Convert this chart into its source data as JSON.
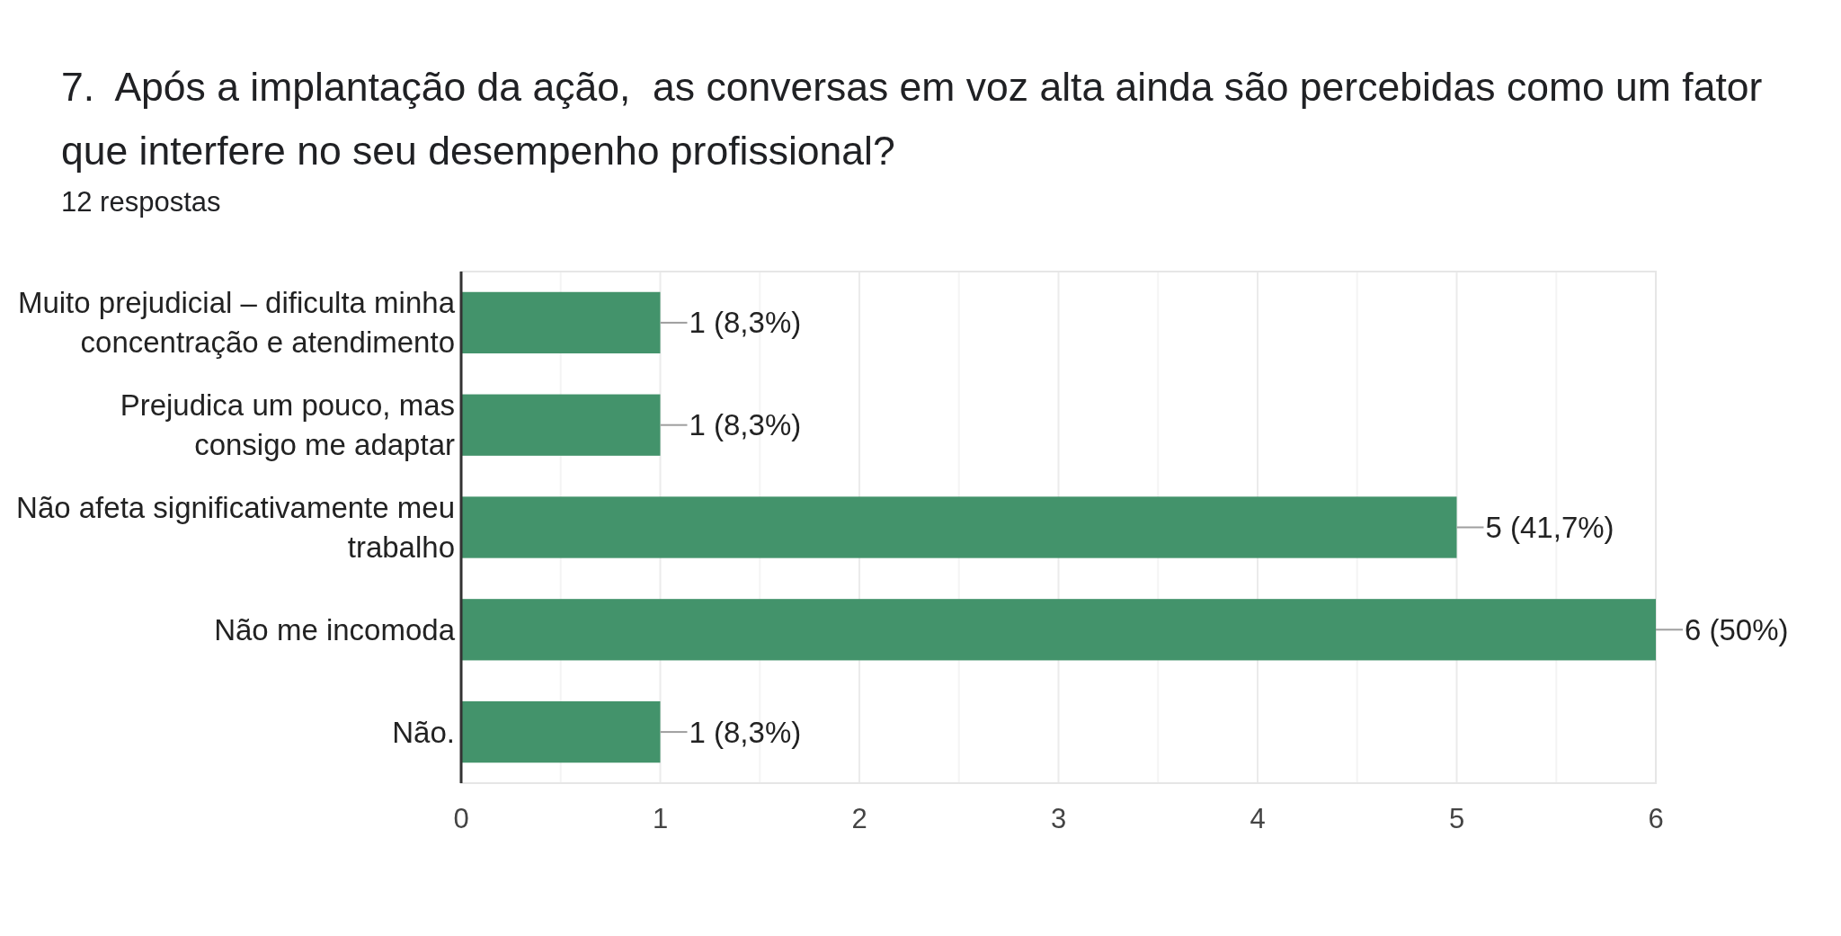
{
  "chart_data": {
    "type": "bar",
    "orientation": "horizontal",
    "title": "7.  Após a implantação da ação,  as conversas em voz alta ainda são percebidas como um fator que interfere no seu desempenho profissional?",
    "subtitle": "12 respostas",
    "categories": [
      "Muito prejudicial – dificulta minha concentração e atendimento",
      "Prejudica um pouco, mas consigo me adaptar",
      "Não afeta significativamente meu trabalho",
      "Não me incomoda",
      "Não."
    ],
    "values": [
      1,
      1,
      5,
      6,
      1
    ],
    "color": "#43936b",
    "value_labels": [
      "1 (8,3%)",
      "1 (8,3%)",
      "5 (41,7%)",
      "6 (50%)",
      "1 (8,3%)"
    ],
    "xlim": [
      0,
      6
    ],
    "xticks": [
      0,
      {
        "value": 0.5,
        "label": null
      },
      1,
      {
        "value": 1.5,
        "label": null
      },
      2,
      {
        "value": 2.5,
        "label": null
      },
      3,
      {
        "value": 3.5,
        "label": null
      },
      4,
      {
        "value": 4.5,
        "label": null
      },
      5,
      {
        "value": 5.5,
        "label": null
      },
      6
    ],
    "grid": "x"
  }
}
